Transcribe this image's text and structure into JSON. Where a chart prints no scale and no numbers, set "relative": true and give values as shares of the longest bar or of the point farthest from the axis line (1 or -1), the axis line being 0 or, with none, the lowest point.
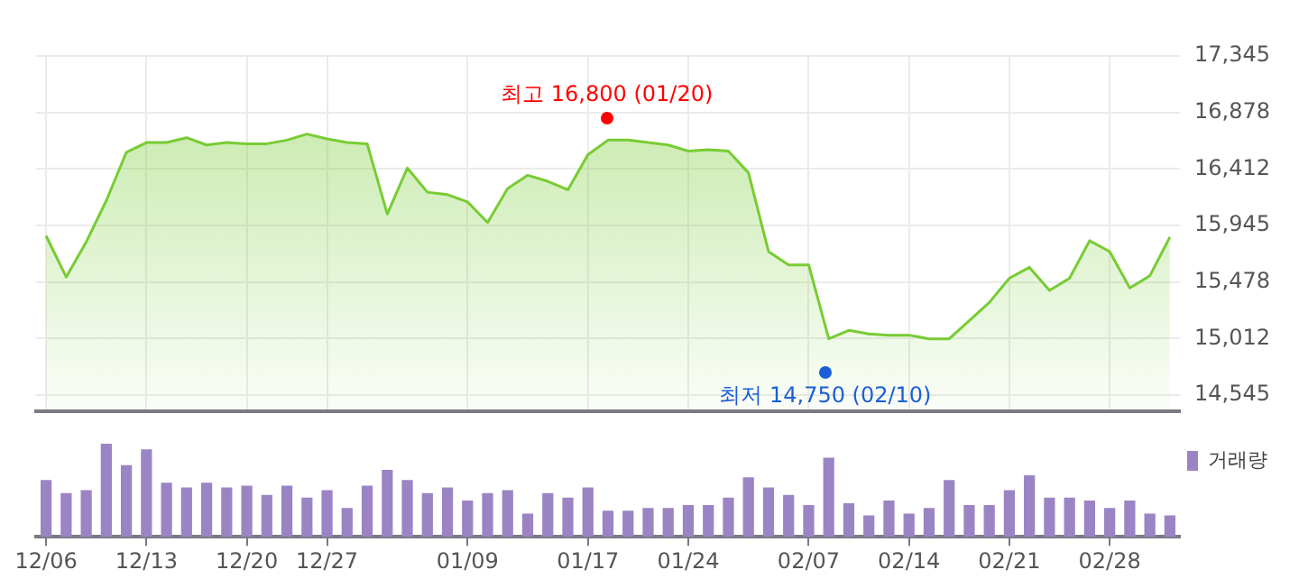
{
  "chart_data": [
    {
      "type": "area",
      "categories": [
        "12/06",
        null,
        null,
        null,
        null,
        "12/13",
        null,
        null,
        null,
        null,
        "12/20",
        null,
        null,
        null,
        "12/27",
        null,
        null,
        null,
        null,
        null,
        null,
        "01/09",
        null,
        null,
        null,
        null,
        null,
        "01/17",
        null,
        null,
        null,
        null,
        "01/24",
        null,
        null,
        null,
        null,
        null,
        "02/07",
        null,
        null,
        null,
        null,
        "02/14",
        null,
        null,
        null,
        null,
        "02/21",
        null,
        null,
        null,
        null,
        "02/28",
        null,
        null,
        null
      ],
      "series": [
        {
          "color": "#77cc33",
          "values": [
            15860,
            15520,
            15810,
            16150,
            16550,
            16630,
            16630,
            16670,
            16610,
            16630,
            16620,
            16620,
            16650,
            16700,
            16660,
            16630,
            16620,
            16040,
            16420,
            16220,
            16200,
            16140,
            15970,
            16250,
            16360,
            16310,
            16240,
            16530,
            16650,
            16650,
            16630,
            16610,
            16560,
            16570,
            16560,
            16380,
            15730,
            15620,
            15620,
            15010,
            15080,
            15050,
            15040,
            15040,
            15010,
            15010,
            15160,
            15310,
            15510,
            15600,
            15410,
            15510,
            15820,
            15730,
            15430,
            15530,
            15850
          ]
        }
      ],
      "ylim": [
        14415,
        17345
      ],
      "yticks": [
        {
          "value": 14545,
          "label": "14,545"
        },
        {
          "value": 15012,
          "label": "15,012"
        },
        {
          "value": 15478,
          "label": "15,478"
        },
        {
          "value": 15945,
          "label": "15,945"
        },
        {
          "value": 16412,
          "label": "16,412"
        },
        {
          "value": 16878,
          "label": "16,878"
        },
        {
          "value": 17345,
          "label": "17,345"
        }
      ],
      "grid": true,
      "tick_labels": "y",
      "annotations": [
        "최고 16,800 (01/20)",
        "최저 14,750 (02/10)"
      ]
    },
    {
      "type": "bar",
      "categories": [
        "12/06",
        null,
        null,
        null,
        null,
        "12/13",
        null,
        null,
        null,
        null,
        "12/20",
        null,
        null,
        null,
        "12/27",
        null,
        null,
        null,
        null,
        null,
        null,
        "01/09",
        null,
        null,
        null,
        null,
        null,
        "01/17",
        null,
        null,
        null,
        null,
        "01/24",
        null,
        null,
        null,
        null,
        null,
        "02/07",
        null,
        null,
        null,
        null,
        "02/14",
        null,
        null,
        null,
        null,
        "02/21",
        null,
        null,
        null,
        null,
        "02/28",
        null,
        null,
        null
      ],
      "series": [
        {
          "name": "거래량",
          "color": "#9b84c4",
          "values": [
            0.61,
            0.47,
            0.5,
            1,
            0.77,
            0.94,
            0.58,
            0.53,
            0.58,
            0.53,
            0.55,
            0.45,
            0.55,
            0.42,
            0.5,
            0.31,
            0.55,
            0.72,
            0.61,
            0.47,
            0.53,
            0.39,
            0.47,
            0.5,
            0.25,
            0.47,
            0.42,
            0.53,
            0.28,
            0.28,
            0.31,
            0.31,
            0.34,
            0.34,
            0.42,
            0.64,
            0.53,
            0.45,
            0.34,
            0.85,
            0.36,
            0.23,
            0.39,
            0.25,
            0.31,
            0.61,
            0.34,
            0.34,
            0.5,
            0.66,
            0.42,
            0.42,
            0.39,
            0.31,
            0.39,
            0.25,
            0.23
          ]
        }
      ],
      "relative": true,
      "legend": "top right",
      "tick_labels": "x"
    }
  ]
}
